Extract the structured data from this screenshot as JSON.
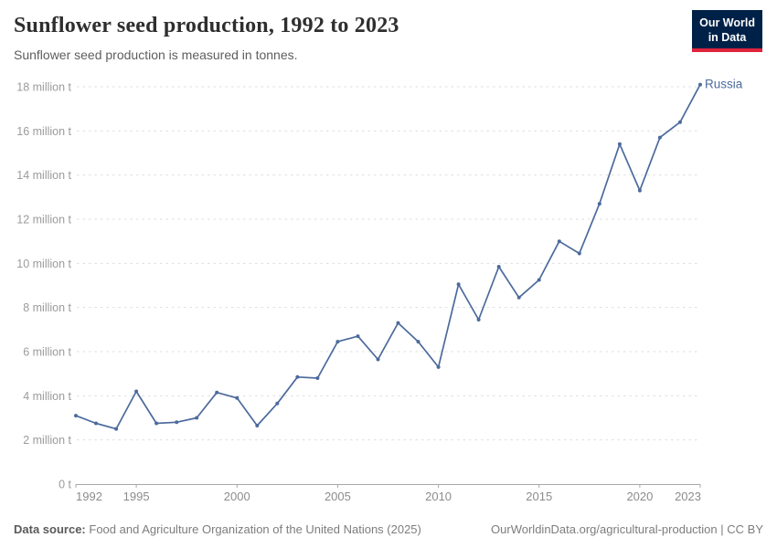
{
  "header": {
    "title": "Sunflower seed production, 1992 to 2023",
    "subtitle": "Sunflower seed production is measured in tonnes.",
    "logo": {
      "line1": "Our World",
      "line2": "in Data"
    }
  },
  "chart_data": {
    "type": "line",
    "title": "Sunflower seed production, 1992 to 2023",
    "unit": "tonnes",
    "unit_display": "million t",
    "grid": "horizontal-dashed",
    "legend_position": "end-of-line-label",
    "xlim": [
      1992,
      2023
    ],
    "ylim": [
      0,
      18
    ],
    "x_ticks": [
      1992,
      1995,
      2000,
      2005,
      2010,
      2015,
      2020,
      2023
    ],
    "y_ticks": [
      0,
      2,
      4,
      6,
      8,
      10,
      12,
      14,
      16,
      18
    ],
    "y_tick_format": "{v} million t",
    "y_zero_label": "0 t",
    "series": [
      {
        "name": "Russia",
        "color": "#4c6a9c",
        "x": [
          1992,
          1993,
          1994,
          1995,
          1996,
          1997,
          1998,
          1999,
          2000,
          2001,
          2002,
          2003,
          2004,
          2005,
          2006,
          2007,
          2008,
          2009,
          2010,
          2011,
          2012,
          2013,
          2014,
          2015,
          2016,
          2017,
          2018,
          2019,
          2020,
          2021,
          2022,
          2023
        ],
        "values": [
          3.1,
          2.75,
          2.5,
          4.2,
          2.75,
          2.8,
          3.0,
          4.15,
          3.9,
          2.65,
          3.65,
          4.85,
          4.8,
          6.45,
          6.7,
          5.65,
          7.3,
          6.45,
          5.3,
          9.05,
          7.45,
          9.85,
          8.45,
          9.25,
          11.0,
          10.45,
          12.7,
          15.4,
          13.3,
          15.7,
          16.4,
          18.1
        ]
      }
    ]
  },
  "footer": {
    "datasource_label": "Data source:",
    "datasource_text": "Food and Agriculture Organization of the United Nations (2025)",
    "link": "OurWorldinData.org/agricultural-production",
    "separator": " | ",
    "license": "CC BY"
  }
}
